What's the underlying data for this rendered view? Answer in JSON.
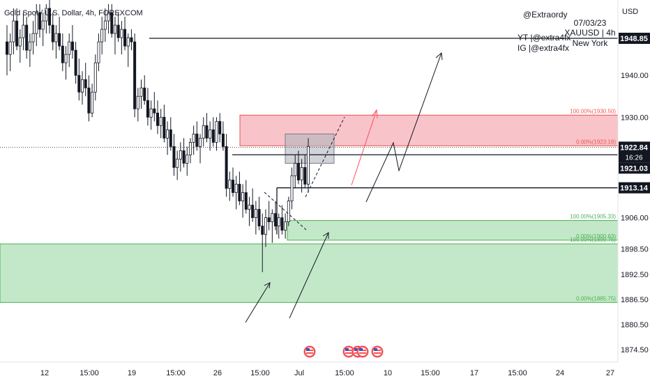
{
  "header": {
    "symbol_title": "Gold Spot / U.S. Dollar, 4h, FOREXCOM",
    "currency_button": "USD"
  },
  "note": {
    "author": "@Extraordy",
    "youtube": "YT |@extra4fx",
    "instagram": "IG |@extra4fx",
    "date": "07/03/23",
    "pair_tf": "XAUUSD | 4h",
    "session": "New York"
  },
  "colors": {
    "up": "#26a69a",
    "down": "#ef5350",
    "candle": "#131722",
    "supply_zone": "#f7b9bf",
    "demand_zone": "#bde5c3",
    "demand_border": "#4caf50",
    "supply_border": "#ef5350",
    "red_arrow": "#f7525f"
  },
  "chart_data": {
    "type": "candlestick",
    "symbol": "XAUUSD",
    "timeframe": "4h",
    "ylim": [
      1871.5,
      1958
    ],
    "y_ticks": [
      1874.5,
      1880.5,
      1886.5,
      1892.5,
      1898.5,
      1906.0,
      1930.0,
      1940.0
    ],
    "y_tick_labels": [
      "1874.50",
      "1880.50",
      "1886.50",
      "1892.50",
      "1898.50",
      "1906.00",
      "1930.00",
      "1940.00"
    ],
    "x_labels": [
      "12",
      "15:00",
      "19",
      "15:00",
      "26",
      "15:00",
      "Jul",
      "15:00",
      "10",
      "15:00",
      "17",
      "15:00",
      "24",
      "27"
    ],
    "price_labels": {
      "last": "1922.84",
      "countdown": "16:26",
      "line_1921": "1921.03",
      "line_1913": "1913.14",
      "line_1948": "1948.85"
    },
    "levels": [
      1948.85,
      1921.03,
      1913.14
    ],
    "zones": [
      {
        "name": "supply-zone",
        "top": 1930.5,
        "bottom": 1923.18,
        "label_top": "100.00%(1930.50)",
        "label_bottom": "0.00%(1923.18)"
      },
      {
        "name": "demand-zone-small",
        "top": 1905.33,
        "bottom": 1900.63,
        "label_top": "100.00%(1905.33)",
        "label_bottom": "0.00%(1900.63)"
      },
      {
        "name": "demand-zone-large",
        "top": 1899.75,
        "bottom": 1885.75,
        "label_top": "100.00%(1899.75)",
        "label_bottom": "0.00%(1885.75)"
      }
    ],
    "candles_ohlc": [
      [
        1948,
        1952,
        1940,
        1945
      ],
      [
        1945,
        1950,
        1941,
        1948
      ],
      [
        1948,
        1956,
        1945,
        1953
      ],
      [
        1953,
        1956,
        1946,
        1947
      ],
      [
        1947,
        1951,
        1943,
        1949
      ],
      [
        1949,
        1955,
        1946,
        1952
      ],
      [
        1952,
        1954,
        1944,
        1946
      ],
      [
        1946,
        1950,
        1942,
        1948
      ],
      [
        1948,
        1953,
        1945,
        1950
      ],
      [
        1950,
        1957,
        1947,
        1955
      ],
      [
        1955,
        1957,
        1949,
        1951
      ],
      [
        1951,
        1955,
        1947,
        1953
      ],
      [
        1953,
        1957,
        1950,
        1956
      ],
      [
        1956,
        1958,
        1950,
        1952
      ],
      [
        1952,
        1955,
        1946,
        1948
      ],
      [
        1948,
        1952,
        1944,
        1950
      ],
      [
        1950,
        1954,
        1946,
        1947
      ],
      [
        1947,
        1950,
        1941,
        1943
      ],
      [
        1943,
        1947,
        1939,
        1945
      ],
      [
        1945,
        1950,
        1942,
        1948
      ],
      [
        1948,
        1952,
        1944,
        1946
      ],
      [
        1946,
        1948,
        1938,
        1940
      ],
      [
        1940,
        1944,
        1934,
        1936
      ],
      [
        1936,
        1941,
        1933,
        1939
      ],
      [
        1939,
        1943,
        1935,
        1937
      ],
      [
        1937,
        1940,
        1929,
        1931
      ],
      [
        1931,
        1938,
        1930,
        1936
      ],
      [
        1936,
        1945,
        1934,
        1943
      ],
      [
        1943,
        1950,
        1941,
        1948
      ],
      [
        1948,
        1954,
        1945,
        1951
      ],
      [
        1951,
        1956,
        1948,
        1953
      ],
      [
        1953,
        1957,
        1950,
        1955
      ],
      [
        1955,
        1957,
        1949,
        1950
      ],
      [
        1950,
        1954,
        1945,
        1952
      ],
      [
        1952,
        1955,
        1948,
        1949
      ],
      [
        1949,
        1953,
        1945,
        1951
      ],
      [
        1951,
        1954,
        1946,
        1947
      ],
      [
        1947,
        1950,
        1942,
        1949
      ],
      [
        1949,
        1951,
        1946,
        1948
      ],
      [
        1948,
        1950,
        1930,
        1932
      ],
      [
        1932,
        1937,
        1929,
        1935
      ],
      [
        1935,
        1939,
        1932,
        1937
      ],
      [
        1937,
        1940,
        1933,
        1934
      ],
      [
        1934,
        1937,
        1928,
        1930
      ],
      [
        1930,
        1934,
        1927,
        1932
      ],
      [
        1932,
        1936,
        1929,
        1931
      ],
      [
        1931,
        1934,
        1926,
        1928
      ],
      [
        1928,
        1932,
        1925,
        1930
      ],
      [
        1930,
        1933,
        1924,
        1925
      ],
      [
        1925,
        1929,
        1921,
        1927
      ],
      [
        1927,
        1930,
        1922,
        1923
      ],
      [
        1923,
        1926,
        1916,
        1918
      ],
      [
        1918,
        1922,
        1915,
        1920
      ],
      [
        1920,
        1924,
        1917,
        1922
      ],
      [
        1922,
        1925,
        1918,
        1919
      ],
      [
        1919,
        1923,
        1916,
        1921
      ],
      [
        1921,
        1925,
        1919,
        1924
      ],
      [
        1924,
        1928,
        1921,
        1926
      ],
      [
        1926,
        1929,
        1922,
        1923
      ],
      [
        1923,
        1926,
        1919,
        1925
      ],
      [
        1925,
        1930,
        1923,
        1928
      ],
      [
        1928,
        1931,
        1924,
        1925
      ],
      [
        1925,
        1929,
        1922,
        1927
      ],
      [
        1927,
        1930,
        1923,
        1924
      ],
      [
        1924,
        1930,
        1922,
        1929
      ],
      [
        1929,
        1931,
        1924,
        1926
      ],
      [
        1926,
        1929,
        1922,
        1923
      ],
      [
        1923,
        1926,
        1911,
        1913
      ],
      [
        1913,
        1917,
        1910,
        1915
      ],
      [
        1915,
        1918,
        1911,
        1912
      ],
      [
        1912,
        1916,
        1908,
        1914
      ],
      [
        1914,
        1917,
        1909,
        1910
      ],
      [
        1910,
        1914,
        1906,
        1912
      ],
      [
        1912,
        1915,
        1907,
        1908
      ],
      [
        1908,
        1911,
        1904,
        1909
      ],
      [
        1909,
        1913,
        1905,
        1906
      ],
      [
        1906,
        1910,
        1902,
        1908
      ],
      [
        1908,
        1911,
        1903,
        1904
      ],
      [
        1904,
        1907,
        1893,
        1902
      ],
      [
        1902,
        1908,
        1899,
        1906
      ],
      [
        1906,
        1910,
        1903,
        1905
      ],
      [
        1905,
        1908,
        1900,
        1907
      ],
      [
        1907,
        1910,
        1903,
        1904
      ],
      [
        1904,
        1907,
        1901,
        1906
      ],
      [
        1906,
        1909,
        1902,
        1903
      ],
      [
        1903,
        1907,
        1901,
        1905
      ],
      [
        1905,
        1911,
        1904,
        1910
      ],
      [
        1910,
        1918,
        1908,
        1916
      ],
      [
        1916,
        1921,
        1913,
        1919
      ],
      [
        1919,
        1922,
        1914,
        1915
      ],
      [
        1915,
        1920,
        1912,
        1918
      ],
      [
        1918,
        1921,
        1913,
        1914
      ],
      [
        1914,
        1925,
        1912,
        1923
      ]
    ]
  }
}
